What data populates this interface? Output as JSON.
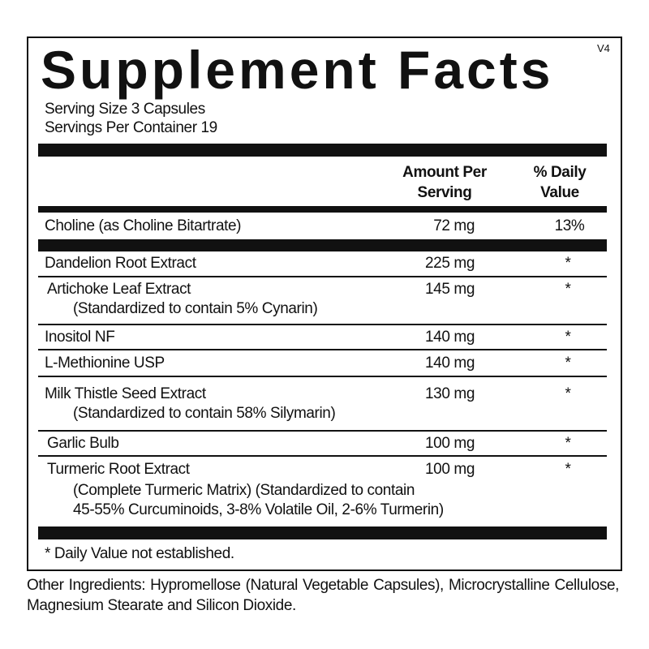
{
  "title": "Supplement Facts",
  "version": "V4",
  "serving_size": "Serving Size 3 Capsules",
  "servings_per_container": "Servings Per Container  19",
  "headers": {
    "amount": [
      "Amount Per",
      "Serving"
    ],
    "daily_value": [
      "% Daily",
      "Value"
    ]
  },
  "choline": {
    "name": "Choline (as Choline Bitartrate)",
    "amount": "72 mg",
    "dv": "13%"
  },
  "rows": [
    {
      "name": "Dandelion Root Extract",
      "amount": "225 mg",
      "dv": "*"
    },
    {
      "name": "Artichoke Leaf Extract",
      "sub": "(Standardized to contain 5% Cynarin)",
      "amount": "145 mg",
      "dv": "*"
    },
    {
      "name": "Inositol NF",
      "amount": "140 mg",
      "dv": "*"
    },
    {
      "name": "L-Methionine USP",
      "amount": "140 mg",
      "dv": "*"
    },
    {
      "name": "Milk Thistle Seed Extract",
      "sub": "(Standardized to contain 58% Silymarin)",
      "amount": "130 mg",
      "dv": "*"
    },
    {
      "name": "Garlic Bulb",
      "amount": "100 mg",
      "dv": "*"
    },
    {
      "name": "Turmeric Root Extract",
      "sub": "(Complete Turmeric Matrix) (Standardized to contain",
      "sub2": "45-55% Curcuminoids, 3-8% Volatile Oil, 2-6% Turmerin)",
      "amount": "100 mg",
      "dv": "*"
    }
  ],
  "footnote": "* Daily Value not established.",
  "other_ingredients": "Other Ingredients: Hypromellose (Natural Vegetable Capsules), Microcrystalline Cellulose, Magnesium Stearate and Silicon Dioxide."
}
